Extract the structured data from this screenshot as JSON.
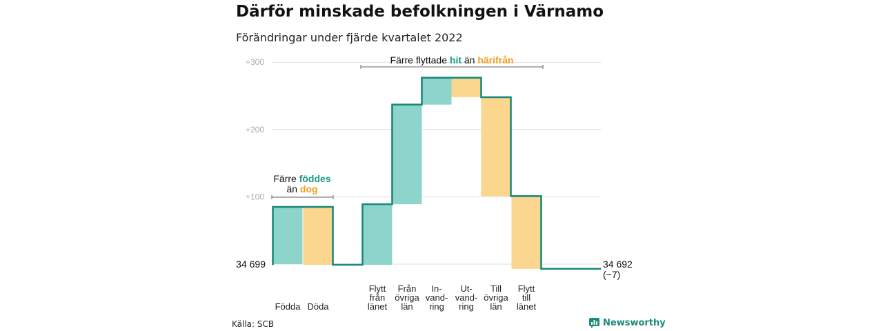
{
  "title": "Därför minskade befolkningen i Värnamo",
  "subtitle": "Förändringar under fjärde kvartalet 2022",
  "source": "Källa: SCB",
  "brand": {
    "name": "Newsworthy",
    "icon": "newsworthy-logo-icon"
  },
  "colors": {
    "positive": "#8dd4cb",
    "negative": "#fbd68e",
    "line": "#1a8a7a",
    "positive_text": "#1a9a88",
    "negative_text": "#f0a020",
    "grid": "#dddddd"
  },
  "chart_data": {
    "type": "waterfall",
    "start_value": 34699,
    "start_label": "34 699",
    "end_value": 34692,
    "end_label": "34 692",
    "end_change_label": "(−7)",
    "ylim": [
      -10,
      300
    ],
    "yticks": [
      {
        "value": 100,
        "label": "+100"
      },
      {
        "value": 200,
        "label": "+200"
      },
      {
        "value": 300,
        "label": "+300"
      }
    ],
    "grid": true,
    "steps": [
      {
        "label_lines": [
          "Födda"
        ],
        "value": 85
      },
      {
        "label_lines": [
          "Döda"
        ],
        "value": -86
      },
      {
        "label_lines": [
          "Flytt",
          "från",
          "länet"
        ],
        "value": 90
      },
      {
        "label_lines": [
          "Från",
          "övriga",
          "län"
        ],
        "value": 148
      },
      {
        "label_lines": [
          "In-",
          "vand-",
          "ring"
        ],
        "value": 40
      },
      {
        "label_lines": [
          "Ut-",
          "vand-",
          "ring"
        ],
        "value": -29
      },
      {
        "label_lines": [
          "Till",
          "övriga",
          "län"
        ],
        "value": -147
      },
      {
        "label_lines": [
          "Flytt",
          "till",
          "länet"
        ],
        "value": -108
      }
    ],
    "annotations": [
      {
        "id": "births",
        "lines": [
          [
            {
              "text": "Färre ",
              "style": "plain"
            },
            {
              "text": "föddes",
              "style": "pos"
            }
          ],
          [
            {
              "text": "än ",
              "style": "plain"
            },
            {
              "text": "dog",
              "style": "neg"
            }
          ]
        ]
      },
      {
        "id": "migration",
        "lines": [
          [
            {
              "text": "Färre flyttade ",
              "style": "plain"
            },
            {
              "text": "hit",
              "style": "pos"
            },
            {
              "text": " än ",
              "style": "plain"
            },
            {
              "text": "härifrån",
              "style": "neg"
            }
          ]
        ]
      }
    ]
  }
}
